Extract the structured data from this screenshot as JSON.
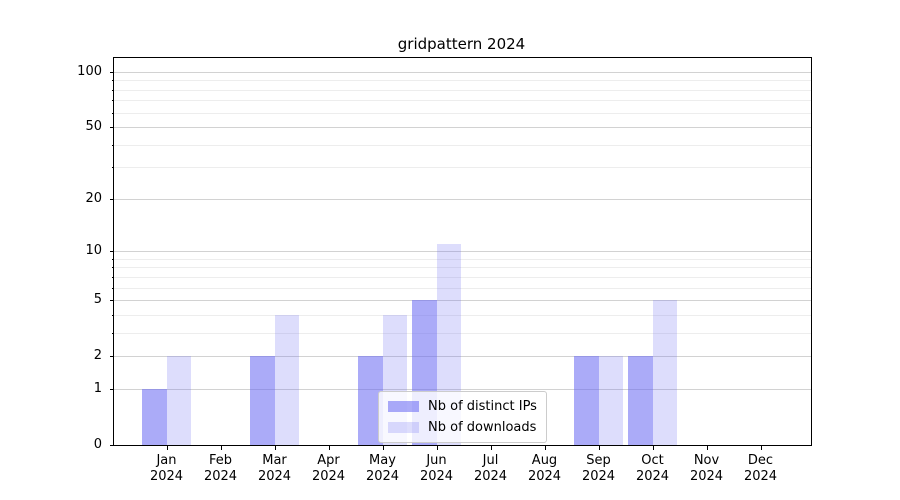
{
  "title": "gridpattern 2024",
  "colors": {
    "distinct_ips": "rgba(102,102,242,0.55)",
    "downloads": "rgba(102,102,242,0.22)",
    "grid_major": "#d2d2d2",
    "grid_minor": "#ededed",
    "spine": "#000000",
    "legend_border": "#cccccc"
  },
  "legend": {
    "items": [
      {
        "swatch": "distinct-ips-swatch",
        "label": "Nb of distinct IPs"
      },
      {
        "swatch": "downloads-swatch",
        "label": "Nb of downloads"
      }
    ]
  },
  "chart_data": {
    "type": "bar",
    "title": "gridpattern 2024",
    "xlabel": "",
    "ylabel": "",
    "categories": [
      "Jan 2024",
      "Feb 2024",
      "Mar 2024",
      "Apr 2024",
      "May 2024",
      "Jun 2024",
      "Jul 2024",
      "Aug 2024",
      "Sep 2024",
      "Oct 2024",
      "Nov 2024",
      "Dec 2024"
    ],
    "series": [
      {
        "name": "Nb of distinct IPs",
        "color": "rgba(102,102,242,0.55)",
        "values": [
          1,
          0,
          2,
          0,
          2,
          5,
          0,
          0,
          2,
          2,
          0,
          0
        ]
      },
      {
        "name": "Nb of downloads",
        "color": "rgba(102,102,242,0.22)",
        "values": [
          2,
          0,
          4,
          0,
          4,
          11,
          0,
          0,
          2,
          5,
          0,
          0
        ]
      }
    ],
    "yscale": "log1p",
    "ylim": [
      0,
      119
    ],
    "yticks": [
      0,
      1,
      2,
      5,
      10,
      20,
      50,
      100
    ],
    "yticks_minor": [
      3,
      4,
      6,
      7,
      8,
      9,
      30,
      40,
      60,
      70,
      80,
      90
    ],
    "grid": true,
    "legend_position": "lower center"
  }
}
